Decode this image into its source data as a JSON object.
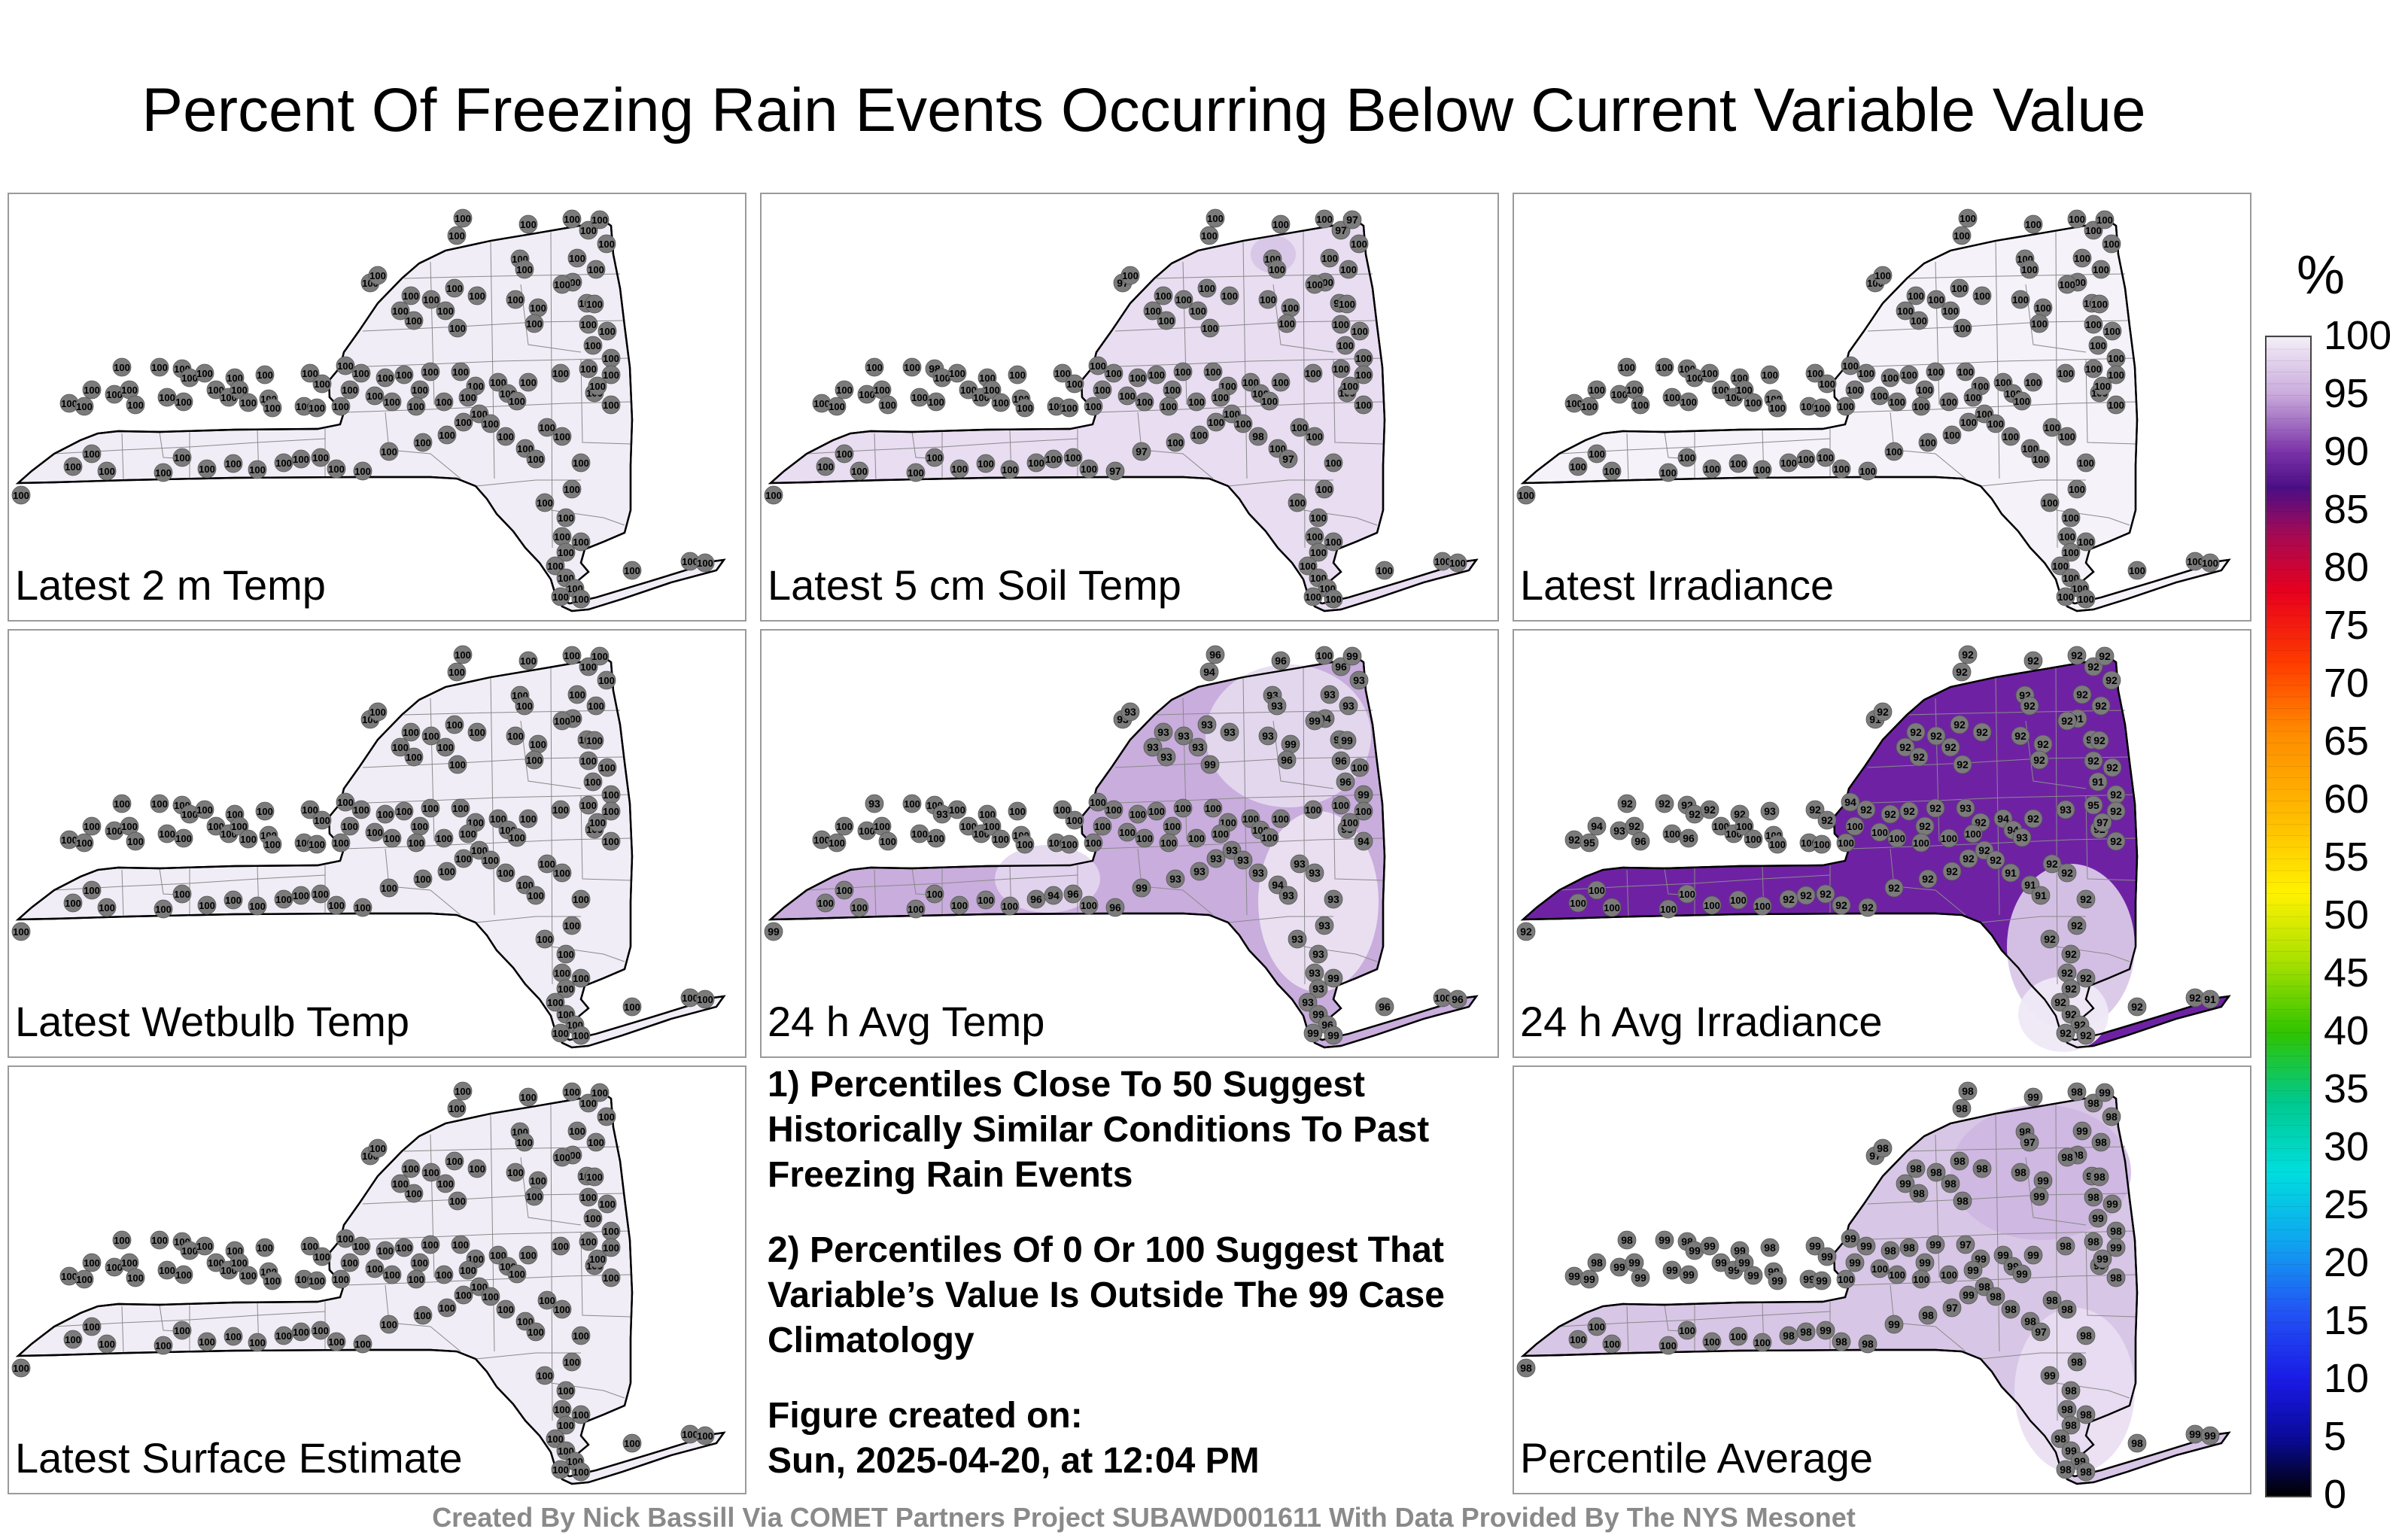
{
  "title": "Percent Of Freezing Rain Events Occurring Below Current Variable Value",
  "colorbar": {
    "unit": "%",
    "ticks": [
      "100",
      "95",
      "90",
      "85",
      "80",
      "75",
      "70",
      "65",
      "60",
      "55",
      "50",
      "45",
      "40",
      "35",
      "30",
      "25",
      "20",
      "15",
      "10",
      "5",
      "0"
    ],
    "stops": [
      {
        "v": 100,
        "c": "#f4eff8"
      },
      {
        "v": 95,
        "c": "#c9a9dc"
      },
      {
        "v": 90,
        "c": "#7a31a8"
      },
      {
        "v": 87,
        "c": "#4b0e86"
      },
      {
        "v": 83,
        "c": "#a40a55"
      },
      {
        "v": 78,
        "c": "#e8001d"
      },
      {
        "v": 72,
        "c": "#ff3a00"
      },
      {
        "v": 66,
        "c": "#ff8a00"
      },
      {
        "v": 58,
        "c": "#ffc000"
      },
      {
        "v": 52,
        "c": "#fff200"
      },
      {
        "v": 46,
        "c": "#a6e000"
      },
      {
        "v": 40,
        "c": "#2fc400"
      },
      {
        "v": 34,
        "c": "#00c98e"
      },
      {
        "v": 28,
        "c": "#00dede"
      },
      {
        "v": 22,
        "c": "#0fa6f0"
      },
      {
        "v": 16,
        "c": "#2255f5"
      },
      {
        "v": 10,
        "c": "#1a1ae6"
      },
      {
        "v": 5,
        "c": "#0a0a9a"
      },
      {
        "v": 0,
        "c": "#000000"
      }
    ]
  },
  "panels": [
    {
      "id": "latest-2m-temp",
      "label": "Latest 2 m Temp",
      "fill": "#f1edf6",
      "values": [
        100,
        100,
        100,
        100,
        100,
        100,
        100,
        100,
        100,
        100,
        100,
        100,
        100,
        100,
        100,
        100,
        100,
        100,
        100,
        100,
        100,
        100,
        100,
        100,
        100,
        100,
        100,
        100,
        100,
        100,
        100,
        100,
        100,
        100,
        100,
        100,
        100,
        100,
        100,
        100,
        100,
        100,
        100,
        100,
        100,
        100,
        100,
        100,
        100,
        100,
        100,
        100,
        100,
        100,
        100,
        100,
        100,
        100,
        100,
        100,
        100,
        100,
        100,
        100,
        100,
        100,
        100,
        100,
        100,
        100,
        100,
        100,
        100,
        100,
        100,
        100,
        100,
        100,
        100,
        100,
        100,
        100,
        100,
        100,
        100,
        100,
        100,
        100,
        100,
        100
      ]
    },
    {
      "id": "latest-5cm-soil-temp",
      "label": "Latest 5 cm Soil Temp",
      "fill": "#e8ddf1",
      "values": [
        100,
        100,
        100,
        100,
        97,
        97,
        100,
        100,
        100,
        100,
        100,
        98,
        100,
        97,
        100,
        100,
        100,
        100,
        100,
        100,
        100,
        100,
        100,
        100,
        100,
        100,
        100,
        100,
        100,
        100,
        100,
        100,
        100,
        100,
        100,
        100,
        100,
        98,
        100,
        100,
        100,
        100,
        100,
        100,
        100,
        100,
        100,
        100,
        100,
        100,
        100,
        100,
        100,
        100,
        100,
        100,
        100,
        100,
        100,
        100,
        100,
        100,
        100,
        100,
        100,
        100,
        100,
        100,
        100,
        100,
        100,
        100,
        100,
        100,
        100,
        100,
        100,
        100,
        100,
        100,
        100,
        100,
        100,
        100,
        100,
        100,
        100,
        100,
        100,
        100
      ]
    },
    {
      "id": "latest-irradiance",
      "label": "Latest Irradiance",
      "fill": "#f5f2f9",
      "values": [
        100,
        100,
        100,
        100,
        100,
        100,
        100,
        100,
        100,
        100,
        100,
        100,
        100,
        100,
        100,
        100,
        100,
        100,
        100,
        100,
        100,
        100,
        100,
        100,
        100,
        100,
        100,
        100,
        100,
        100,
        100,
        100,
        100,
        100,
        100,
        100,
        100,
        100,
        100,
        100,
        100,
        100,
        100,
        100,
        100,
        100,
        100,
        100,
        100,
        100,
        100,
        100,
        100,
        100,
        100,
        100,
        100,
        100,
        100,
        100,
        100,
        100,
        100,
        100,
        100,
        100,
        100,
        100,
        100,
        100,
        100,
        100,
        100,
        100,
        100,
        100,
        100,
        100,
        100,
        100,
        100,
        100,
        100,
        100,
        100,
        100,
        100,
        100,
        100,
        100
      ]
    },
    {
      "id": "latest-wetbulb-temp",
      "label": "Latest Wetbulb Temp",
      "fill": "#f1edf6",
      "values": [
        100,
        100,
        100,
        100,
        100,
        100,
        100,
        100,
        100,
        100,
        100,
        100,
        100,
        100,
        100,
        100,
        100,
        100,
        100,
        100,
        100,
        100,
        100,
        100,
        100,
        100,
        100,
        100,
        100,
        100,
        100,
        100,
        100,
        100,
        100,
        100,
        100,
        100,
        100,
        100,
        100,
        100,
        100,
        100,
        100,
        100,
        100,
        100,
        100,
        100,
        100,
        100,
        100,
        100,
        100,
        100,
        100,
        100,
        100,
        100,
        100,
        100,
        100,
        100,
        100,
        100,
        100,
        100,
        100,
        100,
        100,
        100,
        100,
        100,
        100,
        100,
        100,
        100,
        100,
        100,
        100,
        100,
        100,
        100,
        100,
        100,
        100,
        100,
        100,
        100
      ]
    },
    {
      "id": "24h-avg-temp",
      "label": "24 h Avg Temp",
      "fill": "#c9addd",
      "values": [
        96,
        94,
        96,
        100,
        96,
        99,
        93,
        93,
        93,
        93,
        93,
        93,
        94,
        93,
        93,
        93,
        93,
        93,
        93,
        93,
        93,
        99,
        93,
        93,
        99,
        96,
        99,
        99,
        96,
        100,
        96,
        99,
        100,
        93,
        94,
        93,
        100,
        100,
        93,
        100,
        100,
        100,
        100,
        100,
        100,
        100,
        100,
        100,
        100,
        100,
        100,
        100,
        100,
        100,
        100,
        100,
        100,
        100,
        100,
        100,
        100,
        100,
        100,
        100,
        100,
        100,
        100,
        100,
        100,
        100,
        100,
        100,
        100,
        100,
        100,
        100,
        100,
        100,
        100,
        100,
        100,
        100,
        100,
        100,
        100,
        100,
        100,
        100,
        100,
        100
      ]
    },
    {
      "id": "24h-avg-irradiance",
      "label": "24 h Avg Irradiance",
      "fill": "#6e22a3",
      "values": [
        92,
        92,
        92,
        92,
        92,
        92,
        92,
        92,
        92,
        92,
        92,
        91,
        91,
        91,
        92,
        92,
        92,
        92,
        92,
        92,
        92,
        92,
        92,
        92,
        92,
        92,
        92,
        92,
        92,
        92,
        91,
        92,
        92,
        92,
        92,
        92,
        92,
        92,
        92,
        92,
        92,
        93,
        92,
        92,
        94,
        92,
        92,
        92,
        92,
        92,
        93,
        92,
        94,
        92,
        93,
        95,
        97,
        94,
        93,
        92,
        95,
        94,
        93,
        92,
        96,
        100,
        96,
        100,
        100,
        100,
        100,
        100,
        100,
        100,
        100,
        100,
        100,
        100,
        100,
        100,
        100,
        100,
        100,
        100,
        100,
        100,
        100,
        100,
        100,
        100
      ]
    },
    {
      "id": "latest-surface-estimate",
      "label": "Latest Surface Estimate",
      "fill": "#f1edf6",
      "values": [
        100,
        100,
        100,
        100,
        100,
        100,
        100,
        100,
        100,
        100,
        100,
        100,
        100,
        100,
        100,
        100,
        100,
        100,
        100,
        100,
        100,
        100,
        100,
        100,
        100,
        100,
        100,
        100,
        100,
        100,
        100,
        100,
        100,
        100,
        100,
        100,
        100,
        100,
        100,
        100,
        100,
        100,
        100,
        100,
        100,
        100,
        100,
        100,
        100,
        100,
        100,
        100,
        100,
        100,
        100,
        100,
        100,
        100,
        100,
        100,
        100,
        100,
        100,
        100,
        100,
        100,
        100,
        100,
        100,
        100,
        100,
        100,
        100,
        100,
        100,
        100,
        100,
        100,
        100,
        100,
        100,
        100,
        100,
        100,
        100,
        100,
        100,
        100,
        100,
        100
      ]
    },
    {
      "id": "percentile-average",
      "label": "Percentile Average",
      "fill": "#d8c6e6",
      "values": [
        98,
        98,
        99,
        98,
        98,
        99,
        98,
        97,
        99,
        98,
        98,
        98,
        98,
        97,
        98,
        98,
        98,
        98,
        99,
        98,
        98,
        98,
        98,
        98,
        99,
        99,
        98,
        98,
        98,
        99,
        99,
        98,
        99,
        98,
        98,
        98,
        99,
        98,
        99,
        99,
        99,
        98,
        99,
        99,
        99,
        99,
        98,
        98,
        99,
        99,
        97,
        99,
        99,
        99,
        98,
        98,
        99,
        99,
        99,
        99,
        99,
        98,
        99,
        99,
        99,
        99,
        99,
        99,
        99,
        99,
        99,
        99,
        99,
        99,
        99,
        100,
        99,
        100,
        100,
        100,
        100,
        99,
        100,
        100,
        100,
        100,
        100,
        100,
        100,
        100
      ]
    }
  ],
  "notes": [
    "1) Percentiles Close To 50 Suggest Historically Similar Conditions To Past Freezing Rain Events",
    "2) Percentiles Of 0 Or 100 Suggest That Variable’s Value Is Outside The 99 Case Climatology"
  ],
  "figure_created_label": "Figure created on:",
  "figure_created_value": "Sun, 2025-04-20, at 12:04 PM",
  "footer": "Created By Nick Bassill Via COMET Partners Project SUBAWD001611 With Data Provided By The NYS Mesonet"
}
